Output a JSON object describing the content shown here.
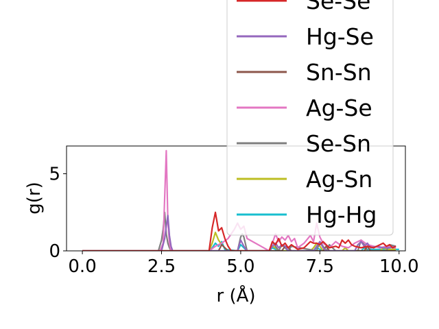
{
  "chart_data": {
    "type": "line",
    "title": "",
    "xlabel": "r (Å)",
    "ylabel": "g(r)",
    "xlim": [
      -0.5,
      10.2
    ],
    "ylim": [
      0,
      6.8
    ],
    "xticks": [
      "0.0",
      "2.5",
      "5.0",
      "7.5",
      "10.0"
    ],
    "xtick_values": [
      0,
      2.5,
      5.0,
      7.5,
      10.0
    ],
    "yticks": [
      "0",
      "5"
    ],
    "ytick_values": [
      0,
      5
    ],
    "grid": false,
    "legend_position": "upper right (overflowing top of plot)",
    "legend": [
      {
        "label": "Se-Se",
        "color": "#d62728"
      },
      {
        "label": "Hg-Se",
        "color": "#9467bd"
      },
      {
        "label": "Sn-Sn",
        "color": "#8c564b"
      },
      {
        "label": "Ag-Se",
        "color": "#e377c2"
      },
      {
        "label": "Se-Sn",
        "color": "#7f7f7f"
      },
      {
        "label": "Ag-Sn",
        "color": "#bcbd22"
      },
      {
        "label": "Hg-Hg",
        "color": "#17becf"
      }
    ],
    "series": [
      {
        "name": "Hg-Hg",
        "color": "#17becf",
        "x": [
          0,
          4.0,
          4.1,
          4.2,
          4.3,
          4.4,
          4.5,
          4.9,
          5.0,
          5.1,
          5.2,
          5.9,
          6.0,
          6.1,
          6.2,
          7.3,
          7.4,
          7.5,
          7.6,
          8.8,
          8.9,
          9.0,
          10.0
        ],
        "y": [
          0,
          0,
          0.2,
          0.5,
          0.3,
          0.6,
          0.1,
          0,
          0.4,
          0.2,
          0,
          0,
          0.2,
          0.1,
          0,
          0,
          0.2,
          0.1,
          0,
          0,
          0.2,
          0.1,
          0.1
        ]
      },
      {
        "name": "Ag-Sn",
        "color": "#bcbd22",
        "x": [
          0,
          4.0,
          4.1,
          4.2,
          4.3,
          4.4,
          4.5,
          4.6,
          5.9,
          6.0,
          6.1,
          6.2,
          6.3,
          7.2,
          7.3,
          7.4,
          7.5,
          7.6,
          8.2,
          8.3,
          8.4,
          9.4,
          9.5,
          9.6,
          9.9
        ],
        "y": [
          0,
          0,
          0.5,
          1.2,
          0.7,
          0.4,
          0.2,
          0,
          0,
          0.3,
          0.2,
          0,
          0,
          0,
          0.2,
          0.5,
          0.3,
          0,
          0,
          0.2,
          0,
          0,
          0.2,
          0.1,
          0.1
        ]
      },
      {
        "name": "Se-Sn",
        "color": "#7f7f7f",
        "x": [
          0,
          2.4,
          2.5,
          2.55,
          2.6,
          2.65,
          2.7,
          2.75,
          2.8,
          4.9,
          5.0,
          5.05,
          5.1,
          5.2,
          5.9,
          6.0,
          6.1,
          6.2,
          6.3,
          6.4,
          6.5,
          6.6,
          7.4,
          7.5,
          7.6,
          7.7,
          7.8,
          7.9,
          8.0,
          8.7,
          8.8,
          8.9,
          9.0,
          9.6,
          9.7,
          9.9
        ],
        "y": [
          0,
          0,
          0.7,
          1.4,
          2.5,
          1.1,
          0.5,
          0.2,
          0,
          0,
          0.9,
          1.1,
          0.9,
          0,
          0,
          0.6,
          0.3,
          0,
          0.4,
          0.2,
          0,
          0.3,
          0,
          0.6,
          0.3,
          0,
          0.4,
          0.2,
          0,
          0,
          0.7,
          0.4,
          0,
          0,
          0.4,
          0.3
        ]
      },
      {
        "name": "Ag-Se",
        "color": "#e377c2",
        "x": [
          0,
          2.45,
          2.55,
          2.6,
          2.65,
          2.7,
          2.75,
          2.8,
          4.0,
          4.2,
          4.4,
          4.6,
          4.8,
          4.9,
          5.0,
          5.1,
          5.2,
          5.9,
          6.0,
          6.1,
          6.2,
          6.3,
          6.4,
          6.5,
          6.6,
          6.7,
          6.8,
          7.0,
          7.2,
          7.3,
          7.4,
          7.5,
          7.6,
          7.8,
          8.0,
          8.2,
          8.4,
          8.6,
          8.8,
          9.0,
          9.2,
          9.4,
          9.6,
          9.8,
          9.9
        ],
        "y": [
          0,
          0,
          0.5,
          3.5,
          6.5,
          2.0,
          0.5,
          0,
          0,
          0.3,
          0.5,
          0.8,
          1.4,
          1.8,
          1.4,
          1.6,
          0.8,
          0,
          0.5,
          1.1,
          0.6,
          0.9,
          0.7,
          1.0,
          0.6,
          0.8,
          0.2,
          0.5,
          1.0,
          0.6,
          1.8,
          0.9,
          0.5,
          0.2,
          0.6,
          0.3,
          0.2,
          0.5,
          0.7,
          0.4,
          0.3,
          0.2,
          0.3,
          0.2,
          0.2
        ]
      },
      {
        "name": "Sn-Sn",
        "color": "#8c564b",
        "x": [
          0,
          4.3,
          4.4,
          4.5,
          4.6,
          6.3,
          6.4,
          6.5,
          6.6,
          7.6,
          7.7,
          7.8,
          8.9,
          9.0,
          9.1,
          9.9
        ],
        "y": [
          0,
          0,
          0.4,
          0.2,
          0,
          0,
          0.3,
          0.2,
          0,
          0,
          0.3,
          0,
          0,
          0.3,
          0,
          0
        ]
      },
      {
        "name": "Hg-Se",
        "color": "#9467bd",
        "x": [
          0,
          2.5,
          2.6,
          2.65,
          2.7,
          2.75,
          2.8,
          2.85,
          4.9,
          5.0,
          5.1,
          5.2,
          5.9,
          6.0,
          6.1,
          6.2,
          6.3,
          6.4,
          6.5,
          7.3,
          7.4,
          7.5,
          7.6,
          7.7,
          8.6,
          8.7,
          8.8,
          8.9,
          9.0,
          9.1,
          9.3,
          9.5,
          9.7,
          9.9
        ],
        "y": [
          0,
          0,
          0.8,
          1.6,
          2.3,
          1.0,
          0.3,
          0,
          0,
          0.7,
          0.3,
          0,
          0,
          0.3,
          0.5,
          0.2,
          0.4,
          0.3,
          0,
          0,
          0.3,
          0.6,
          0.2,
          0,
          0,
          0.4,
          0.6,
          0.3,
          0.5,
          0.2,
          0.3,
          0.2,
          0.2,
          0.3
        ]
      },
      {
        "name": "Se-Se",
        "color": "#d62728",
        "x": [
          0,
          4.0,
          4.1,
          4.2,
          4.3,
          4.4,
          4.5,
          4.6,
          4.7,
          5.9,
          6.0,
          6.1,
          6.2,
          6.3,
          6.4,
          6.5,
          6.6,
          6.8,
          7.0,
          7.2,
          7.3,
          7.4,
          7.5,
          7.6,
          7.8,
          8.0,
          8.1,
          8.2,
          8.3,
          8.4,
          8.5,
          8.6,
          8.8,
          9.0,
          9.2,
          9.4,
          9.5,
          9.6,
          9.7,
          9.8,
          9.9
        ],
        "y": [
          0,
          0,
          1.5,
          2.5,
          1.3,
          1.5,
          0.8,
          0.3,
          0,
          0,
          0.6,
          0.4,
          0.8,
          0.3,
          0.5,
          0.2,
          0.4,
          0.1,
          0.2,
          0.6,
          0.5,
          0.5,
          0.4,
          0.6,
          0.2,
          0.3,
          0.2,
          0.7,
          0.5,
          0.7,
          0.4,
          0.3,
          0.2,
          0.3,
          0.2,
          0.4,
          0.5,
          0.3,
          0.4,
          0.2,
          0.3
        ]
      }
    ]
  }
}
